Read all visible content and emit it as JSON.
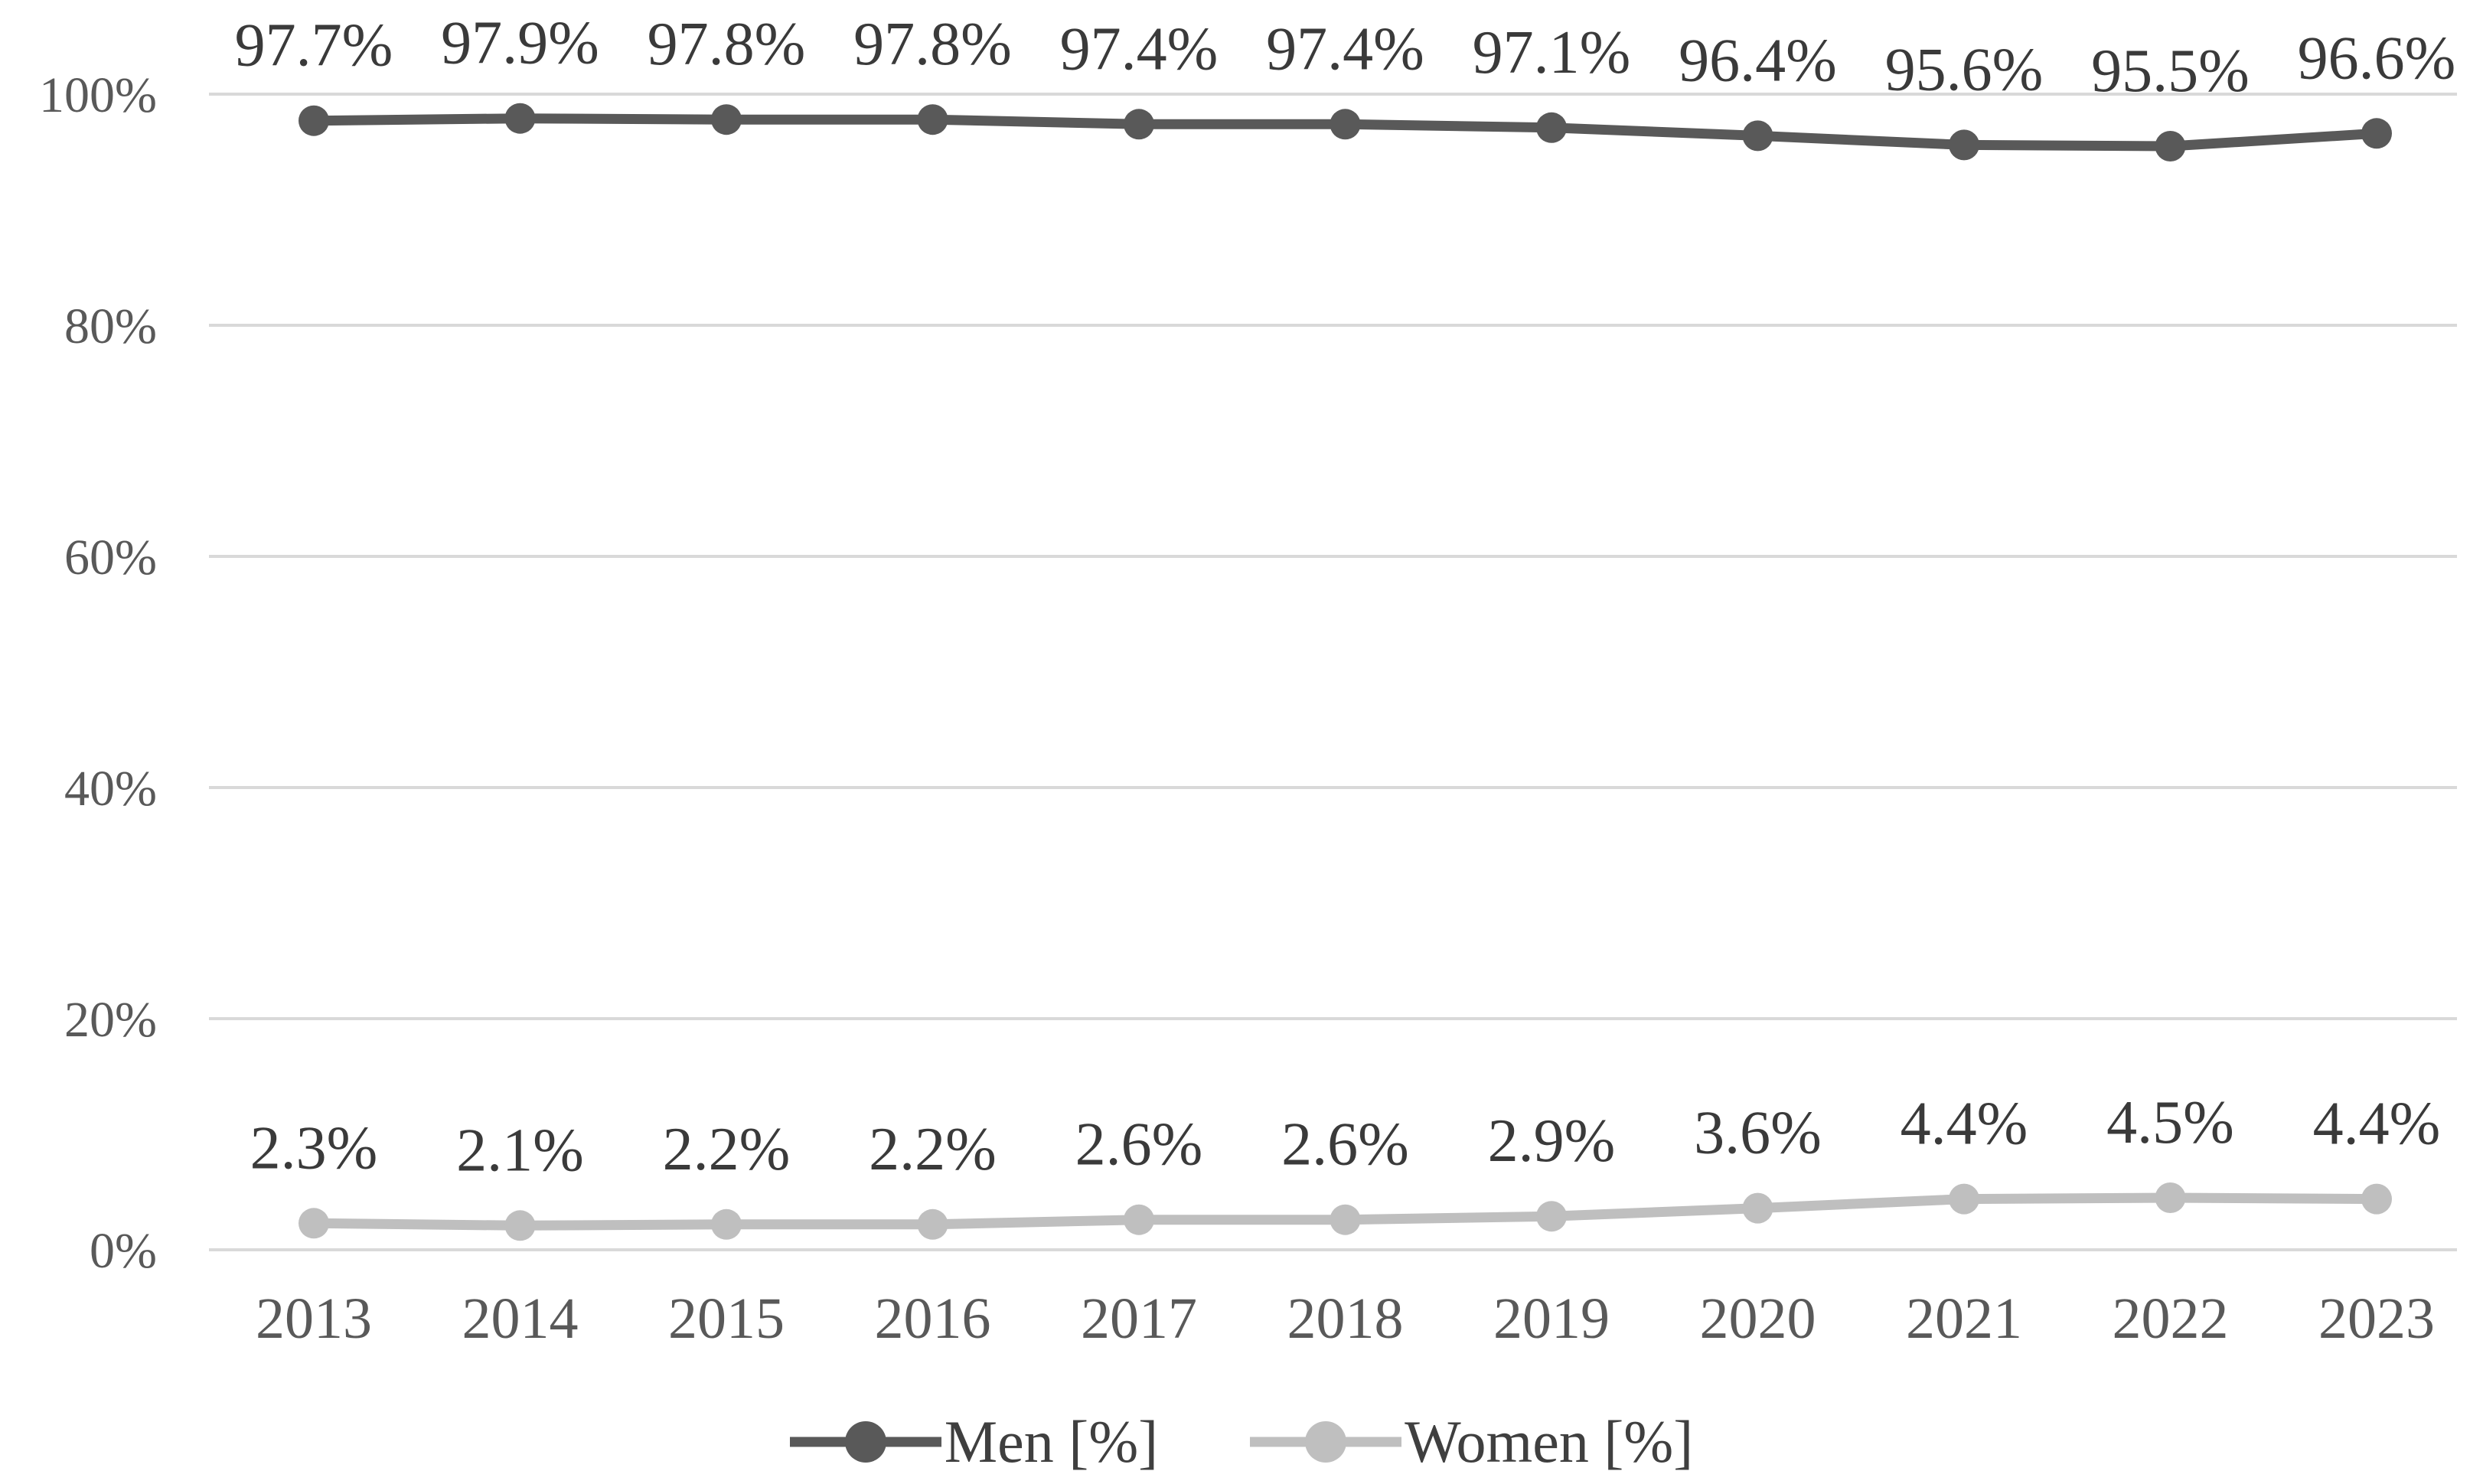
{
  "chart_data": {
    "type": "line",
    "title": "",
    "xlabel": "",
    "ylabel": "",
    "categories": [
      "2013",
      "2014",
      "2015",
      "2016",
      "2017",
      "2018",
      "2019",
      "2020",
      "2021",
      "2022",
      "2023"
    ],
    "series": [
      {
        "name": "Men [%]",
        "color": "#595959",
        "values": [
          97.7,
          97.9,
          97.8,
          97.8,
          97.4,
          97.4,
          97.1,
          96.4,
          95.6,
          95.5,
          96.6
        ],
        "labels": [
          "97.7%",
          "97.9%",
          "97.8%",
          "97.8%",
          "97.4%",
          "97.4%",
          "97.1%",
          "96.4%",
          "95.6%",
          "95.5%",
          "96.6%"
        ]
      },
      {
        "name": "Women [%]",
        "color": "#bfbfbf",
        "values": [
          2.3,
          2.1,
          2.2,
          2.2,
          2.6,
          2.6,
          2.9,
          3.6,
          4.4,
          4.5,
          4.4
        ],
        "labels": [
          "2.3%",
          "2.1%",
          "2.2%",
          "2.2%",
          "2.6%",
          "2.6%",
          "2.9%",
          "3.6%",
          "4.4%",
          "4.5%",
          "4.4%"
        ]
      }
    ],
    "y_axis": {
      "min": 0,
      "max": 100,
      "ticks": [
        {
          "value": 0,
          "label": "0%"
        },
        {
          "value": 20,
          "label": "20%"
        },
        {
          "value": 40,
          "label": "40%"
        },
        {
          "value": 60,
          "label": "60%"
        },
        {
          "value": 80,
          "label": "80%"
        },
        {
          "value": 100,
          "label": "100%"
        }
      ]
    },
    "grid": true,
    "legend_position": "bottom"
  },
  "colors": {
    "background": "#ffffff",
    "grid": "#d9d9d9",
    "axis_text": "#595959",
    "data_label_text": "#3a3a3a",
    "men_series": "#595959",
    "women_series": "#bfbfbf"
  }
}
